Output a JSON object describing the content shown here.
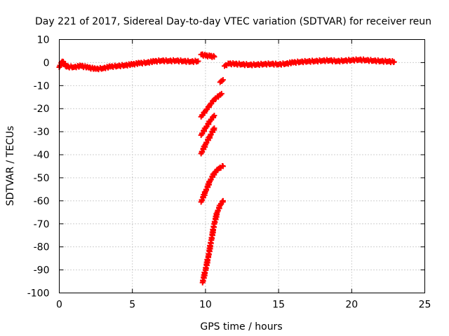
{
  "chart_data": {
    "type": "scatter",
    "title": "Day 221 of 2017, Sidereal Day-to-day VTEC variation (SDTVAR) for receiver reun",
    "xlabel": "GPS time / hours",
    "ylabel": "SDTVAR / TECUs",
    "xlim": [
      0,
      25
    ],
    "ylim": [
      -100,
      10
    ],
    "xticks": [
      "0",
      "5",
      "10",
      "15",
      "20",
      "25"
    ],
    "yticks": [
      "10",
      "0",
      "-10",
      "-20",
      "-30",
      "-40",
      "-50",
      "-60",
      "-70",
      "-80",
      "-90",
      "-100"
    ],
    "grid": true,
    "marker": "plus",
    "color": "#ff0000",
    "series": [
      {
        "segments": [
          [
            [
              0,
              -2
            ],
            [
              0.2,
              0.5
            ],
            [
              0.5,
              -1.8
            ],
            [
              1,
              -2
            ],
            [
              1.5,
              -1.5
            ],
            [
              2,
              -2.2
            ],
            [
              2.5,
              -2.8
            ],
            [
              3,
              -2.5
            ],
            [
              3.5,
              -1.8
            ],
            [
              4,
              -1.5
            ],
            [
              4.5,
              -1.2
            ],
            [
              5,
              -0.8
            ],
            [
              5.5,
              -0.3
            ],
            [
              6,
              0
            ],
            [
              6.5,
              0.5
            ],
            [
              7,
              0.8
            ],
            [
              7.5,
              0.7
            ],
            [
              8,
              0.8
            ],
            [
              8.5,
              0.6
            ],
            [
              9,
              0.4
            ],
            [
              9.5,
              0.6
            ]
          ],
          [
            [
              9.7,
              3.5
            ],
            [
              10,
              3
            ],
            [
              10.3,
              2.8
            ],
            [
              10.6,
              2.5
            ]
          ],
          [
            [
              11.3,
              -1.5
            ],
            [
              11.6,
              -0.5
            ],
            [
              12,
              -0.6
            ],
            [
              12.5,
              -0.8
            ],
            [
              13,
              -1
            ],
            [
              13.5,
              -0.9
            ],
            [
              14,
              -0.7
            ],
            [
              14.5,
              -0.6
            ],
            [
              15,
              -0.8
            ],
            [
              15.5,
              -0.5
            ],
            [
              16,
              0
            ],
            [
              16.5,
              0.3
            ],
            [
              17,
              0.5
            ],
            [
              17.5,
              0.6
            ],
            [
              18,
              0.8
            ],
            [
              18.5,
              0.9
            ],
            [
              19,
              0.6
            ],
            [
              19.5,
              0.8
            ],
            [
              20,
              1
            ],
            [
              20.5,
              1.2
            ],
            [
              21,
              1
            ],
            [
              21.5,
              0.8
            ],
            [
              22,
              0.6
            ],
            [
              22.5,
              0.5
            ],
            [
              22.9,
              0.3
            ]
          ],
          [
            [
              11,
              -8.5
            ],
            [
              11.2,
              -7.5
            ]
          ],
          [
            [
              9.7,
              -23.5
            ],
            [
              10,
              -21
            ],
            [
              10.3,
              -18.5
            ],
            [
              10.6,
              -16
            ],
            [
              10.9,
              -14.5
            ],
            [
              11.1,
              -13.5
            ]
          ],
          [
            [
              9.7,
              -31.5
            ],
            [
              10,
              -28.5
            ],
            [
              10.3,
              -25.5
            ],
            [
              10.6,
              -23
            ]
          ],
          [
            [
              9.7,
              -39.5
            ],
            [
              10,
              -35.5
            ],
            [
              10.3,
              -32
            ],
            [
              10.6,
              -28.5
            ]
          ],
          [
            [
              9.7,
              -60.5
            ],
            [
              10,
              -56
            ],
            [
              10.3,
              -51.5
            ],
            [
              10.6,
              -48
            ],
            [
              10.9,
              -46
            ],
            [
              11.2,
              -45
            ]
          ],
          [
            [
              9.8,
              -95.5
            ],
            [
              10,
              -90
            ],
            [
              10.2,
              -84
            ],
            [
              10.4,
              -77
            ],
            [
              10.6,
              -70
            ],
            [
              10.8,
              -65
            ],
            [
              11,
              -62
            ],
            [
              11.2,
              -60
            ]
          ]
        ]
      }
    ]
  }
}
